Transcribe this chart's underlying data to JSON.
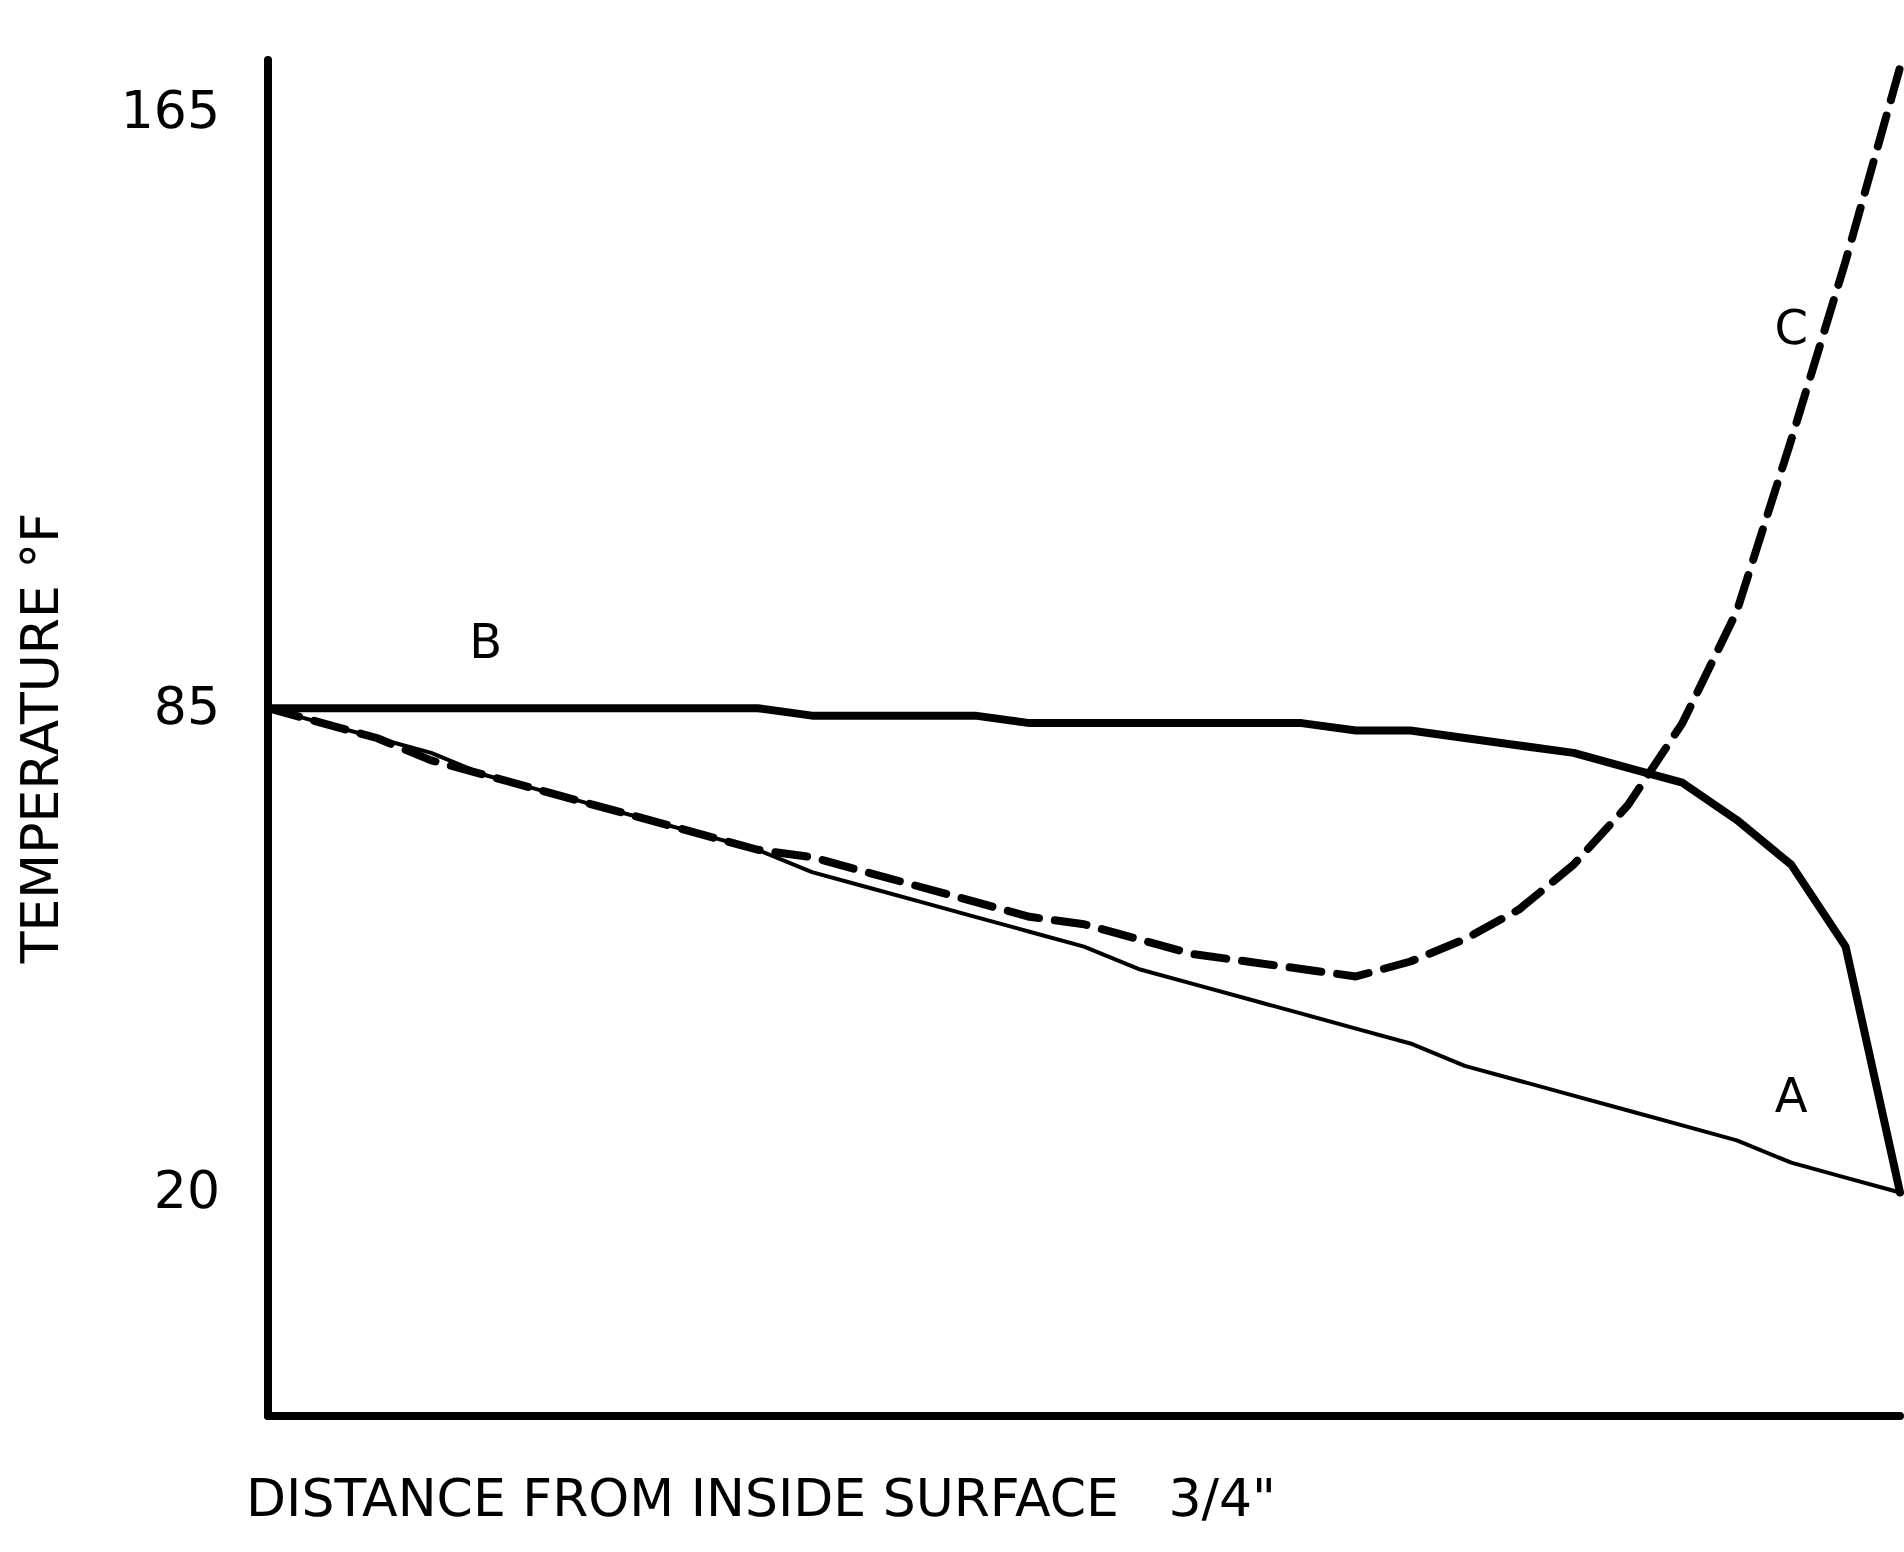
{
  "chart_data": {
    "type": "line",
    "xlabel": "DISTANCE FROM INSIDE SURFACE   3/4\"",
    "ylabel": "TEMPERATURE °F",
    "ylim": [
      -10,
      172
    ],
    "yticks": [
      20,
      85,
      165
    ],
    "tick_labels": "y",
    "marker": "none",
    "line_style": "solid",
    "categories": [
      null,
      null,
      null,
      null,
      null,
      null,
      null,
      null,
      null,
      null,
      null,
      null,
      null,
      null,
      null,
      null,
      null,
      null,
      null,
      null,
      null,
      null,
      null,
      null,
      null,
      null,
      null,
      null,
      null,
      null,
      null
    ],
    "series": [
      {
        "color": "#000000",
        "values": [
          85,
          83,
          81,
          79,
          76,
          74,
          72,
          70,
          68,
          66,
          63,
          61,
          59,
          57,
          55,
          53,
          50,
          48,
          46,
          44,
          42,
          40,
          37,
          35,
          33,
          31,
          29,
          27,
          24,
          22,
          20
        ]
      },
      {
        "color": "#000000",
        "values": [
          85,
          85,
          85,
          85,
          85,
          85,
          85,
          85,
          85,
          85,
          84,
          84,
          84,
          84,
          83,
          83,
          83,
          83,
          83,
          83,
          82,
          82,
          81,
          80,
          79,
          77,
          75,
          70,
          64,
          53,
          20
        ]
      },
      {
        "color": "#000000",
        "line_style": "dashed",
        "values": [
          85,
          83,
          81,
          78,
          76,
          74,
          72,
          70,
          68,
          66,
          65,
          63,
          61,
          59,
          57,
          56,
          54,
          52,
          51,
          50,
          49,
          51,
          54,
          58,
          64,
          72,
          83,
          98,
          121,
          145,
          171
        ]
      }
    ],
    "annotations": [
      "A",
      "B",
      "C"
    ]
  }
}
